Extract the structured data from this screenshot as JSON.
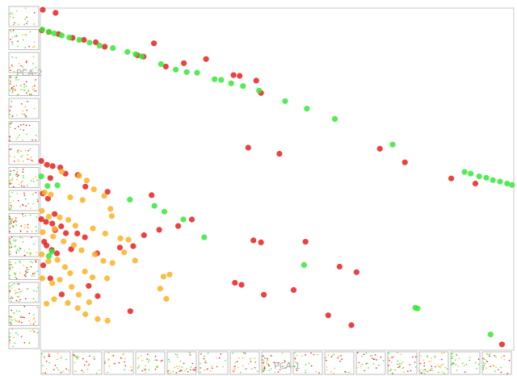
{
  "chart_data": {
    "type": "scatter",
    "title": "",
    "xlabel": "PCA-1",
    "ylabel": "PCA-2",
    "xlim": [
      0,
      100
    ],
    "ylim": [
      0,
      100
    ],
    "grid": false,
    "legend": "none",
    "colors": {
      "red": "#e8201e",
      "green": "#36e836",
      "orange": "#fbb225"
    },
    "series": [
      {
        "color": "red",
        "points": [
          [
            0.5,
            99.5
          ],
          [
            3.2,
            98.6
          ],
          [
            0.3,
            93.5
          ],
          [
            1.8,
            93.0
          ],
          [
            3.8,
            92.4
          ],
          [
            6.8,
            91.3
          ],
          [
            9.2,
            90.7
          ],
          [
            11.7,
            90.0
          ],
          [
            13.6,
            88.7
          ],
          [
            24.0,
            89.7
          ],
          [
            20.5,
            86.2
          ],
          [
            21.8,
            85.8
          ],
          [
            35.0,
            85.1
          ],
          [
            30.3,
            83.9
          ],
          [
            26.5,
            82.9
          ],
          [
            42.1,
            80.2
          ],
          [
            45.6,
            78.8
          ],
          [
            40.8,
            80.4
          ],
          [
            0.2,
            55.3
          ],
          [
            1.4,
            54.2
          ],
          [
            2.6,
            53.8
          ],
          [
            4.2,
            53.4
          ],
          [
            5.3,
            51.6
          ],
          [
            2.1,
            50.3
          ],
          [
            7.9,
            51.2
          ],
          [
            9.5,
            47.8
          ],
          [
            14.2,
            46.3
          ],
          [
            23.5,
            45.3
          ],
          [
            43.9,
            59.2
          ],
          [
            50.5,
            57.4
          ],
          [
            46.6,
            75.2
          ],
          [
            71.7,
            58.9
          ],
          [
            77.0,
            54.9
          ],
          [
            86.8,
            50.2
          ],
          [
            91.9,
            48.7
          ],
          [
            0.5,
            45.8
          ],
          [
            1.6,
            44.3
          ],
          [
            0.2,
            38.3
          ],
          [
            1.2,
            37.5
          ],
          [
            2.5,
            37.0
          ],
          [
            4.4,
            36.2
          ],
          [
            3.1,
            35.1
          ],
          [
            5.4,
            34.2
          ],
          [
            7.8,
            34.1
          ],
          [
            9.4,
            33.0
          ],
          [
            0.8,
            31.7
          ],
          [
            1.3,
            30.6
          ],
          [
            2.4,
            29.3
          ],
          [
            3.5,
            28.3
          ],
          [
            6.5,
            29.5
          ],
          [
            12.0,
            28.3
          ],
          [
            16.8,
            30.0
          ],
          [
            19.6,
            30.4
          ],
          [
            21.9,
            33.6
          ],
          [
            25.1,
            35.2
          ],
          [
            32.0,
            38.2
          ],
          [
            45.0,
            32.1
          ],
          [
            46.6,
            31.5
          ],
          [
            56.0,
            31.7
          ],
          [
            63.2,
            24.4
          ],
          [
            66.8,
            22.8
          ],
          [
            53.5,
            17.6
          ],
          [
            41.1,
            19.7
          ],
          [
            42.5,
            19.1
          ],
          [
            47.2,
            16.2
          ],
          [
            60.8,
            10.2
          ],
          [
            65.7,
            7.3
          ],
          [
            19.0,
            11.4
          ],
          [
            12.1,
            15.8
          ],
          [
            10.2,
            18.8
          ],
          [
            4.5,
            16.3
          ],
          [
            2.1,
            21.0
          ],
          [
            0.6,
            24.8
          ],
          [
            3.0,
            39.8
          ],
          [
            29.1,
            36.3
          ],
          [
            97.5,
            1.7
          ]
        ]
      },
      {
        "color": "green",
        "points": [
          [
            0.4,
            93.7
          ],
          [
            1.8,
            93.1
          ],
          [
            2.9,
            92.6
          ],
          [
            4.5,
            92.0
          ],
          [
            6.1,
            91.4
          ],
          [
            8.2,
            90.7
          ],
          [
            10.4,
            89.9
          ],
          [
            12.5,
            89.0
          ],
          [
            15.3,
            88.3
          ],
          [
            18.4,
            87.2
          ],
          [
            20.1,
            86.5
          ],
          [
            21.4,
            85.9
          ],
          [
            25.5,
            83.6
          ],
          [
            28.6,
            82.0
          ],
          [
            30.9,
            81.3
          ],
          [
            33.1,
            81.1
          ],
          [
            36.8,
            79.2
          ],
          [
            38.2,
            79.0
          ],
          [
            40.3,
            78.0
          ],
          [
            42.8,
            77.2
          ],
          [
            46.2,
            75.9
          ],
          [
            51.7,
            72.8
          ],
          [
            56.3,
            70.6
          ],
          [
            62.2,
            67.6
          ],
          [
            74.4,
            60.1
          ],
          [
            89.6,
            52.1
          ],
          [
            90.9,
            51.6
          ],
          [
            92.7,
            50.8
          ],
          [
            94.2,
            50.4
          ],
          [
            95.6,
            49.7
          ],
          [
            97.1,
            49.3
          ],
          [
            98.6,
            48.7
          ],
          [
            99.6,
            48.3
          ],
          [
            0.2,
            50.8
          ],
          [
            3.6,
            48.2
          ],
          [
            18.9,
            44.0
          ],
          [
            24.1,
            42.2
          ],
          [
            26.2,
            40.5
          ],
          [
            30.2,
            38.2
          ],
          [
            34.6,
            33.0
          ],
          [
            1.5,
            48.0
          ],
          [
            2.4,
            28.8
          ],
          [
            1.8,
            27.5
          ],
          [
            55.7,
            24.9
          ],
          [
            79.2,
            12.4
          ],
          [
            79.7,
            12.2
          ],
          [
            95.1,
            4.6
          ]
        ]
      },
      {
        "color": "orange",
        "points": [
          [
            4.5,
            52.2
          ],
          [
            8.2,
            51.0
          ],
          [
            9.8,
            49.6
          ],
          [
            11.3,
            47.0
          ],
          [
            13.5,
            45.1
          ],
          [
            0.9,
            46.1
          ],
          [
            2.2,
            45.5
          ],
          [
            6.3,
            44.7
          ],
          [
            8.9,
            43.9
          ],
          [
            14.8,
            41.3
          ],
          [
            15.1,
            39.2
          ],
          [
            0.3,
            40.7
          ],
          [
            1.8,
            39.0
          ],
          [
            4.1,
            38.8
          ],
          [
            5.9,
            38.1
          ],
          [
            7.4,
            36.4
          ],
          [
            11.1,
            35.6
          ],
          [
            13.7,
            34.1
          ],
          [
            16.9,
            32.7
          ],
          [
            18.6,
            32.3
          ],
          [
            0.5,
            34.5
          ],
          [
            2.7,
            33.2
          ],
          [
            4.9,
            31.8
          ],
          [
            7.1,
            30.7
          ],
          [
            8.7,
            29.2
          ],
          [
            11.5,
            28.0
          ],
          [
            13.3,
            26.1
          ],
          [
            15.2,
            25.5
          ],
          [
            17.7,
            28.6
          ],
          [
            0.3,
            28.0
          ],
          [
            1.7,
            26.0
          ],
          [
            3.6,
            26.4
          ],
          [
            5.2,
            24.3
          ],
          [
            6.3,
            22.5
          ],
          [
            9.4,
            23.0
          ],
          [
            11.0,
            21.3
          ],
          [
            0.4,
            21.0
          ],
          [
            2.5,
            19.6
          ],
          [
            4.1,
            20.6
          ],
          [
            6.6,
            18.5
          ],
          [
            8.1,
            16.2
          ],
          [
            10.3,
            14.0
          ],
          [
            1.3,
            13.6
          ],
          [
            2.9,
            14.9
          ],
          [
            5.8,
            13.8
          ],
          [
            7.9,
            12.3
          ],
          [
            9.5,
            10.5
          ],
          [
            12.1,
            9.1
          ],
          [
            14.2,
            8.6
          ],
          [
            27.3,
            22.1
          ],
          [
            25.3,
            18.0
          ],
          [
            26.6,
            15.0
          ],
          [
            26.0,
            21.5
          ],
          [
            20.0,
            26.2
          ],
          [
            14.1,
            21.0
          ],
          [
            3.0,
            35.5
          ]
        ]
      }
    ]
  }
}
